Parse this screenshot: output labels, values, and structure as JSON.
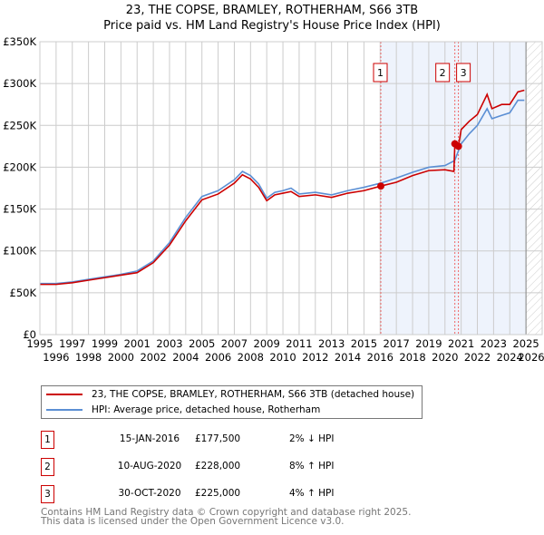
{
  "chart_data": {
    "type": "line",
    "title": "23, THE COPSE, BRAMLEY, ROTHERHAM, S66 3TB",
    "subtitle": "Price paid vs. HM Land Registry's House Price Index (HPI)",
    "xlim": [
      1995,
      2026
    ],
    "ylim": [
      0,
      350000
    ],
    "x_ticks": [
      "1995",
      "1996",
      "1997",
      "1998",
      "1999",
      "2000",
      "2001",
      "2002",
      "2003",
      "2004",
      "2005",
      "2006",
      "2007",
      "2008",
      "2009",
      "2010",
      "2011",
      "2012",
      "2013",
      "2014",
      "2015",
      "2016",
      "2017",
      "2018",
      "2019",
      "2020",
      "2021",
      "2022",
      "2023",
      "2024",
      "2025",
      "2026"
    ],
    "y_ticks": [
      {
        "v": 0,
        "label": "£0"
      },
      {
        "v": 50000,
        "label": "£50K"
      },
      {
        "v": 100000,
        "label": "£100K"
      },
      {
        "v": 150000,
        "label": "£150K"
      },
      {
        "v": 200000,
        "label": "£200K"
      },
      {
        "v": 250000,
        "label": "£250K"
      },
      {
        "v": 300000,
        "label": "£300K"
      },
      {
        "v": 350000,
        "label": "£350K"
      }
    ],
    "grid": true,
    "shaded_range": [
      2016.04,
      2025.0
    ],
    "series": [
      {
        "name": "23, THE COPSE, BRAMLEY, ROTHERHAM, S66 3TB (detached house)",
        "color": "#cc0000",
        "x": [
          1995,
          1996,
          1997,
          1998,
          1999,
          2000,
          2001,
          2002,
          2003,
          2004,
          2005,
          2006,
          2007,
          2007.5,
          2008,
          2008.5,
          2009,
          2009.5,
          2010,
          2010.5,
          2011,
          2012,
          2013,
          2014,
          2015,
          2016.04,
          2017,
          2018,
          2019,
          2020,
          2020.55,
          2020.61,
          2020.83,
          2021,
          2021.5,
          2022,
          2022.6,
          2022.9,
          2023.5,
          2024,
          2024.5,
          2024.9
        ],
        "y": [
          60000,
          60000,
          62000,
          65000,
          68000,
          71000,
          74000,
          86000,
          107000,
          136000,
          161000,
          168000,
          181000,
          191000,
          186000,
          176000,
          160000,
          167000,
          169000,
          171000,
          165000,
          167000,
          164000,
          169000,
          172000,
          177500,
          182000,
          190000,
          196000,
          197000,
          195000,
          228000,
          225000,
          245000,
          255000,
          263000,
          287000,
          270000,
          275000,
          275000,
          290000,
          292000
        ]
      },
      {
        "name": "HPI: Average price, detached house, Rotherham",
        "color": "#5b8fd4",
        "x": [
          1995,
          1996,
          1997,
          1998,
          1999,
          2000,
          2001,
          2002,
          2003,
          2004,
          2005,
          2006,
          2007,
          2007.5,
          2008,
          2008.5,
          2009,
          2009.5,
          2010,
          2010.5,
          2011,
          2012,
          2013,
          2014,
          2015,
          2016.04,
          2017,
          2018,
          2019,
          2020,
          2020.6,
          2021,
          2021.5,
          2022,
          2022.6,
          2022.9,
          2023.5,
          2024,
          2024.5,
          2024.9
        ],
        "y": [
          61000,
          61000,
          63000,
          66000,
          69000,
          72000,
          76000,
          88000,
          110000,
          140000,
          165000,
          172000,
          185000,
          195000,
          190000,
          180000,
          163000,
          170000,
          172000,
          175000,
          168000,
          170000,
          167000,
          172000,
          176000,
          181000,
          187000,
          194000,
          200000,
          202000,
          208000,
          228000,
          240000,
          250000,
          270000,
          258000,
          262000,
          265000,
          280000,
          280000
        ]
      }
    ],
    "sales": [
      {
        "label": "1",
        "x": 2016.04,
        "y": 177500
      },
      {
        "label": "2",
        "x": 2020.61,
        "y": 228000
      },
      {
        "label": "3",
        "x": 2020.83,
        "y": 225000
      }
    ]
  },
  "legend": [
    "23, THE COPSE, BRAMLEY, ROTHERHAM, S66 3TB (detached house)",
    "HPI: Average price, detached house, Rotherham"
  ],
  "table": [
    {
      "num": "1",
      "date": "15-JAN-2016",
      "price": "£177,500",
      "pct": "2% ↓ HPI"
    },
    {
      "num": "2",
      "date": "10-AUG-2020",
      "price": "£228,000",
      "pct": "8% ↑ HPI"
    },
    {
      "num": "3",
      "date": "30-OCT-2020",
      "price": "£225,000",
      "pct": "4% ↑ HPI"
    }
  ],
  "footer": [
    "Contains HM Land Registry data © Crown copyright and database right 2025.",
    "This data is licensed under the Open Government Licence v3.0."
  ]
}
